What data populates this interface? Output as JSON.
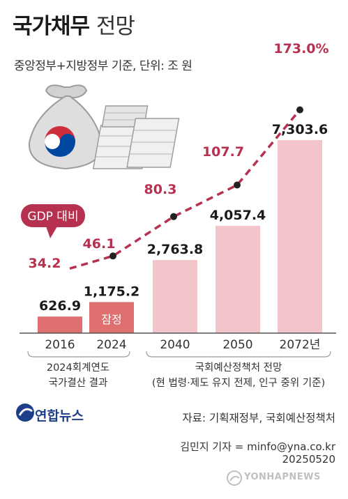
{
  "title": {
    "main": "국가채무",
    "sub": "전망"
  },
  "subtitle": "중앙정부+지방정부 기준, 단위: 조 원",
  "gdp_callout": "GDP 대비",
  "provisional_label": "잠정",
  "notes": {
    "left_line1": "2024회계연도",
    "left_line2": "국가결산 결과",
    "right_line1": "국회예산정책처 전망",
    "right_line2": "(현 법령·제도 유지 전제, 인구 중위 기준)"
  },
  "footer": {
    "logo": "연합뉴스",
    "source": "자료: 기획재정부, 국회예산정책처",
    "reporter": "김민지 기자 = minfo@yna.co.kr",
    "date": "20250520",
    "watermark": "YONHAPNEWS"
  },
  "colors": {
    "bar_actual": "#e06f6f",
    "bar_forecast": "#f2c5ca",
    "line": "#b6314f",
    "percent_text": "#b6314f"
  },
  "chart_data": {
    "type": "bar",
    "categories": [
      "2016",
      "2024",
      "2040",
      "2050",
      "2072년"
    ],
    "series": [
      {
        "values": [
          626.9,
          1175.2,
          2763.8,
          4057.4,
          7303.6
        ],
        "labels": [
          "626.9",
          "1,175.2",
          "2,763.8",
          "4,057.4",
          "7,303.6"
        ]
      },
      {
        "type": "line",
        "values": [
          34.2,
          46.1,
          80.3,
          107.7,
          173.0
        ],
        "labels": [
          "34.2",
          "46.1",
          "80.3",
          "107.7",
          "173.0%"
        ]
      }
    ],
    "provisional_index": 1,
    "ylabel": "조 원"
  }
}
